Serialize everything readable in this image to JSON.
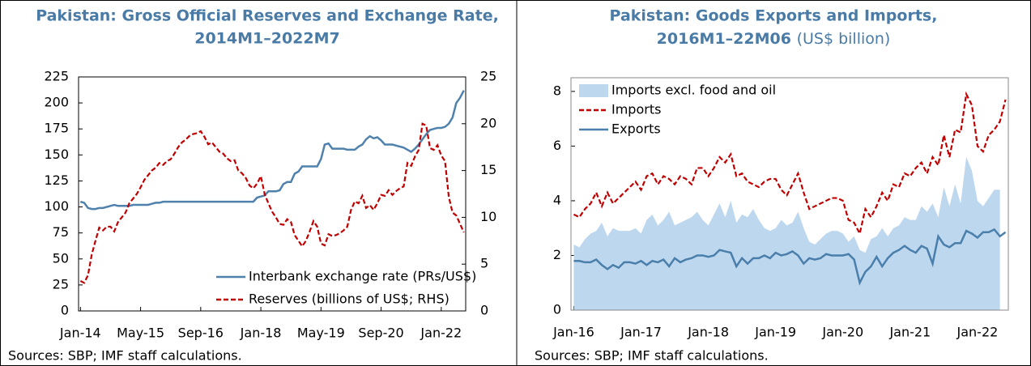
{
  "chart_data": [
    {
      "type": "line",
      "title": [
        "Pakistan: Gross Official Reserves and Exchange Rate,",
        "2014M1–2022M7"
      ],
      "note": "Sources: SBP; IMF staff calculations.",
      "categories": [
        "Jan-14",
        null,
        null,
        null,
        null,
        null,
        null,
        null,
        null,
        null,
        null,
        null,
        null,
        null,
        null,
        null,
        "May-15",
        null,
        null,
        null,
        null,
        null,
        null,
        null,
        null,
        null,
        null,
        null,
        null,
        null,
        null,
        null,
        "Sep-16",
        null,
        null,
        null,
        null,
        null,
        null,
        null,
        null,
        null,
        null,
        null,
        null,
        null,
        null,
        null,
        "Jan-18",
        null,
        null,
        null,
        null,
        null,
        null,
        null,
        null,
        null,
        null,
        null,
        null,
        null,
        null,
        null,
        "May-19",
        null,
        null,
        null,
        null,
        null,
        null,
        null,
        null,
        null,
        null,
        null,
        null,
        null,
        null,
        null,
        "Sep-20",
        null,
        null,
        null,
        null,
        null,
        null,
        null,
        null,
        null,
        null,
        null,
        null,
        null,
        null,
        null,
        "Jan-22",
        null,
        null,
        null,
        null,
        null,
        null
      ],
      "ylim": [
        0,
        225
      ],
      "yticks": [
        0,
        25,
        50,
        75,
        100,
        125,
        150,
        175,
        200,
        225
      ],
      "y2lim": [
        0,
        25
      ],
      "y2ticks": [
        0,
        5,
        10,
        15,
        20,
        25
      ],
      "legend": "lower right",
      "series": [
        {
          "name": "Interbank exchange rate (PRs/US$)",
          "color": "#4f81ad",
          "dash": false,
          "values": [
            105,
            104,
            99,
            98,
            98,
            99,
            99,
            100,
            101,
            102,
            101,
            101,
            101,
            101,
            102,
            102,
            102,
            102,
            102,
            103,
            104,
            104,
            105,
            105,
            105,
            105,
            105,
            105,
            105,
            105,
            105,
            105,
            105,
            105,
            105,
            105,
            105,
            105,
            105,
            105,
            105,
            105,
            105,
            105,
            105,
            105,
            105,
            109,
            110,
            111,
            115,
            115,
            115,
            116,
            122,
            124,
            124,
            132,
            134,
            139,
            139,
            139,
            139,
            139,
            146,
            160,
            161,
            156,
            156,
            156,
            156,
            155,
            155,
            155,
            158,
            160,
            165,
            168,
            166,
            167,
            164,
            160,
            160,
            160,
            159,
            158,
            157,
            155,
            153,
            156,
            160,
            165,
            170,
            174,
            175,
            176,
            176,
            177,
            180,
            186,
            200,
            205,
            212
          ]
        },
        {
          "name": "Reserves (billions of US$; RHS)",
          "color": "#c00000",
          "dash": true,
          "axis": "y2",
          "values": [
            3.2,
            3,
            3.8,
            6,
            7.5,
            8.9,
            8.6,
            9,
            9,
            8.5,
            9.5,
            10,
            10.5,
            11.5,
            12,
            12.5,
            13.2,
            14,
            14.5,
            15,
            15.3,
            15.8,
            15.6,
            16,
            16.2,
            16.8,
            17.5,
            18,
            18.3,
            18.7,
            18.9,
            19,
            19.2,
            18.6,
            17.8,
            18,
            17.5,
            17,
            16.8,
            16.3,
            16,
            16.1,
            15,
            14.7,
            14.2,
            13.4,
            13.1,
            13.6,
            14.4,
            12.5,
            11.5,
            10.6,
            10,
            9.3,
            9.2,
            9.8,
            9.5,
            8.1,
            7.5,
            6.9,
            7.5,
            8.5,
            9.6,
            9,
            7.2,
            7,
            8.2,
            8,
            8.1,
            8.3,
            8.6,
            9,
            10.8,
            11.7,
            11.5,
            12.3,
            11,
            11.3,
            10.8,
            11.5,
            12.4,
            12.3,
            12.9,
            12.4,
            12.8,
            13.1,
            13.3,
            15.8,
            15.5,
            16.5,
            17.2,
            20,
            19.8,
            17.4,
            17.2,
            17.7,
            16.6,
            16,
            12.2,
            10.5,
            10.2,
            9.3,
            8.4
          ]
        }
      ]
    },
    {
      "type": "line",
      "title": [
        "Pakistan: Goods Exports and Imports,",
        "2016M1–22M06"
      ],
      "subtitle": "(US$ billion)",
      "note": "Sources: SBP; IMF staff calculations.",
      "categories": [
        "Jan-16",
        null,
        null,
        null,
        null,
        null,
        null,
        null,
        null,
        null,
        null,
        null,
        "Jan-17",
        null,
        null,
        null,
        null,
        null,
        null,
        null,
        null,
        null,
        null,
        null,
        "Jan-18",
        null,
        null,
        null,
        null,
        null,
        null,
        null,
        null,
        null,
        null,
        null,
        "Jan-19",
        null,
        null,
        null,
        null,
        null,
        null,
        null,
        null,
        null,
        null,
        null,
        "Jan-20",
        null,
        null,
        null,
        null,
        null,
        null,
        null,
        null,
        null,
        null,
        null,
        "Jan-21",
        null,
        null,
        null,
        null,
        null,
        null,
        null,
        null,
        null,
        null,
        null,
        "Jan-22",
        null,
        null,
        null,
        null,
        null
      ],
      "ylim": [
        0,
        8.5
      ],
      "yticks": [
        0,
        2,
        4,
        6,
        8
      ],
      "legend": "upper left",
      "series": [
        {
          "name": "Imports excl. food and oil",
          "color": "#bdd7ee",
          "kind": "area",
          "values": [
            2.4,
            2.3,
            2.6,
            2.8,
            2.9,
            3.2,
            2.7,
            3.0,
            2.9,
            2.9,
            2.9,
            3.0,
            2.8,
            3.3,
            3.5,
            3.1,
            3.3,
            3.6,
            3.1,
            3.2,
            3.3,
            3.4,
            3.6,
            3.3,
            3.1,
            3.5,
            3.9,
            3.4,
            4.0,
            3.2,
            3.5,
            3.4,
            3.7,
            3.3,
            3.0,
            2.9,
            3.0,
            3.3,
            3.1,
            3.2,
            3.6,
            3.0,
            2.5,
            2.4,
            2.6,
            2.8,
            2.9,
            2.9,
            2.8,
            2.5,
            2.7,
            2.2,
            2.1,
            2.6,
            2.7,
            3.0,
            2.7,
            3.0,
            3.1,
            3.4,
            3.3,
            3.3,
            3.8,
            3.6,
            3.9,
            3.4,
            4.5,
            3.8,
            4.6,
            3.9,
            5.6,
            5.1,
            4.0,
            3.8,
            4.1,
            4.4,
            4.4,
            null
          ]
        },
        {
          "name": "Imports",
          "color": "#c00000",
          "dash": true,
          "values": [
            3.5,
            3.4,
            3.7,
            3.9,
            4.3,
            3.8,
            4.3,
            3.9,
            4.1,
            4.3,
            4.5,
            4.7,
            4.4,
            4.9,
            5.0,
            4.6,
            4.9,
            4.8,
            4.6,
            4.9,
            4.8,
            4.6,
            5.2,
            5.2,
            4.9,
            5.2,
            5.6,
            5.4,
            5.7,
            4.9,
            5.0,
            4.7,
            4.6,
            4.5,
            4.7,
            4.8,
            4.8,
            4.4,
            4.2,
            4.6,
            5.0,
            4.3,
            3.7,
            3.8,
            3.9,
            4.0,
            4.1,
            4.1,
            4.0,
            3.3,
            3.2,
            2.8,
            3.7,
            3.4,
            3.8,
            4.3,
            4.0,
            4.6,
            4.5,
            5.0,
            4.9,
            5.2,
            5.4,
            5.0,
            5.6,
            5.3,
            6.4,
            5.6,
            6.6,
            6.5,
            7.9,
            7.5,
            6.0,
            5.8,
            6.4,
            6.6,
            6.9,
            7.7
          ]
        },
        {
          "name": "Exports",
          "color": "#4a7eab",
          "dash": false,
          "values": [
            1.8,
            1.8,
            1.75,
            1.75,
            1.85,
            1.65,
            1.5,
            1.65,
            1.55,
            1.75,
            1.75,
            1.7,
            1.8,
            1.65,
            1.8,
            1.75,
            1.85,
            1.6,
            1.9,
            1.75,
            1.85,
            1.9,
            2.0,
            2.0,
            1.95,
            2.0,
            2.2,
            2.15,
            2.1,
            1.6,
            1.9,
            1.7,
            1.9,
            1.9,
            2.0,
            1.9,
            2.1,
            2.0,
            2.05,
            2.15,
            2.0,
            1.7,
            1.9,
            1.85,
            1.9,
            2.05,
            2.0,
            2.0,
            2.0,
            2.05,
            1.85,
            1.0,
            1.4,
            1.6,
            1.95,
            1.6,
            1.9,
            2.1,
            2.2,
            2.35,
            2.2,
            2.1,
            2.35,
            2.25,
            1.7,
            2.7,
            2.4,
            2.3,
            2.45,
            2.45,
            2.9,
            2.8,
            2.65,
            2.85,
            2.85,
            2.95,
            2.7,
            2.85
          ]
        }
      ]
    }
  ]
}
